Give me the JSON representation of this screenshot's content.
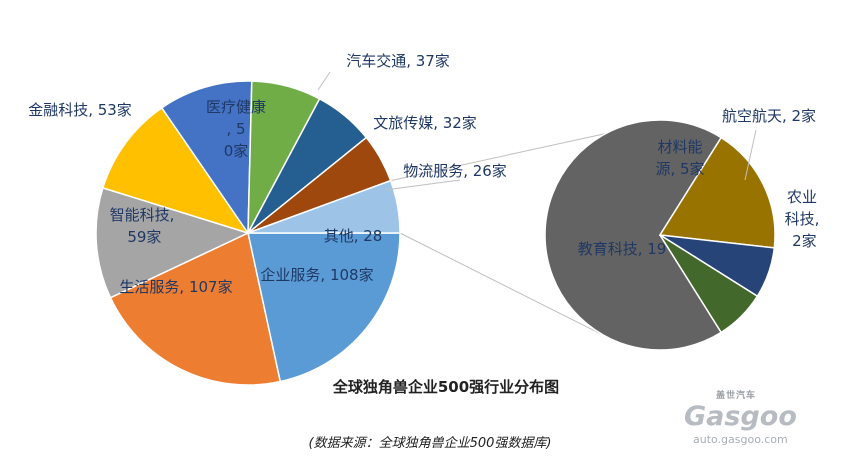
{
  "chart_data": {
    "type": "pie",
    "title": "全球独角兽企业500强行业分布图",
    "source": "(数据来源：全球独角兽企业500强数据库)",
    "main_pie": [
      {
        "name": "企业服务",
        "value": 108,
        "label": "企业服务, 108家",
        "color": "#5b9bd5"
      },
      {
        "name": "生活服务",
        "value": 107,
        "label": "生活服务, 107家",
        "color": "#ed7d31"
      },
      {
        "name": "智能科技",
        "value": 59,
        "label": "智能科技, 59家",
        "color": "#a5a5a5"
      },
      {
        "name": "金融科技",
        "value": 53,
        "label": "金融科技, 53家",
        "color": "#ffc000"
      },
      {
        "name": "医疗健康",
        "value": 50,
        "label": "医疗健康, 50家",
        "color": "#4472c4"
      },
      {
        "name": "汽车交通",
        "value": 37,
        "label": "汽车交通, 37家",
        "color": "#70ad47"
      },
      {
        "name": "文旅传媒",
        "value": 32,
        "label": "文旅传媒, 32家",
        "color": "#255e91"
      },
      {
        "name": "物流服务",
        "value": 26,
        "label": "物流服务, 26家",
        "color": "#9e480e"
      },
      {
        "name": "其他",
        "value": 28,
        "label": "其他, 28",
        "color": "#9dc3e6",
        "is_other": true
      }
    ],
    "secondary_pie": [
      {
        "name": "教育科技",
        "value": 19,
        "label": "教育科技, 19",
        "color": "#636363"
      },
      {
        "name": "材料能源",
        "value": 5,
        "label": "材料能源, 5家",
        "color": "#997300"
      },
      {
        "name": "航空航天",
        "value": 2,
        "label": "航空航天, 2家",
        "color": "#264478"
      },
      {
        "name": "农业科技",
        "value": 2,
        "label": "农业科技, 2家",
        "color": "#43682b"
      }
    ]
  },
  "watermark": {
    "brand_cn": "盖世汽车",
    "brand_en": "Gasgoo",
    "url": "auto.gasgoo.com"
  }
}
